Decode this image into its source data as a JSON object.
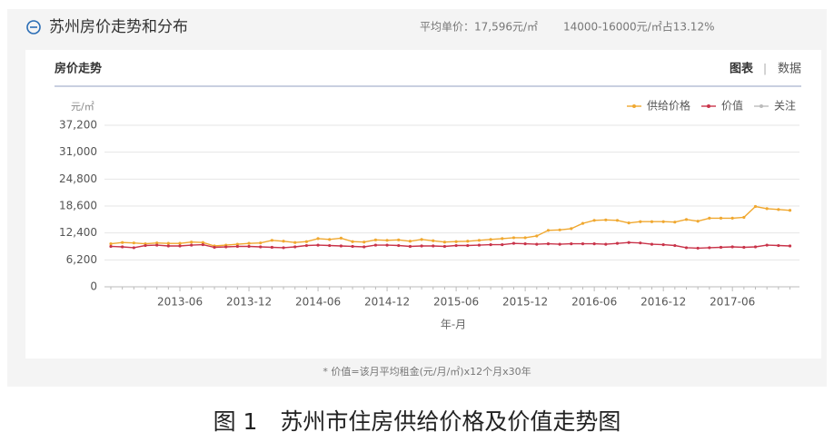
{
  "header": {
    "title": "苏州房价走势和分布",
    "avg_price": "平均单价：17,596元/㎡",
    "share": "14000-16000元/㎡占13.12%"
  },
  "panel": {
    "title": "房价走势",
    "tab_chart": "图表",
    "separator": "|",
    "tab_data": "数据"
  },
  "chart_data": {
    "type": "line",
    "y_unit": "元/㎡",
    "x_label": "年-月",
    "categories": [
      null,
      null,
      null,
      null,
      null,
      null,
      "2013-06",
      null,
      null,
      null,
      null,
      null,
      "2013-12",
      null,
      null,
      null,
      null,
      null,
      "2014-06",
      null,
      null,
      null,
      null,
      null,
      "2014-12",
      null,
      null,
      null,
      null,
      null,
      "2015-06",
      null,
      null,
      null,
      null,
      null,
      "2015-12",
      null,
      null,
      null,
      null,
      null,
      "2016-06",
      null,
      null,
      null,
      null,
      null,
      "2016-12",
      null,
      null,
      null,
      null,
      null,
      "2017-06",
      null,
      null,
      null,
      null,
      null
    ],
    "series": [
      {
        "name": "供给价格",
        "color": "#f0a830",
        "values": [
          9900,
          10200,
          10100,
          9900,
          10100,
          10000,
          10000,
          10300,
          10200,
          9400,
          9600,
          9800,
          10000,
          10100,
          10700,
          10500,
          10200,
          10400,
          11100,
          10900,
          11200,
          10400,
          10300,
          10800,
          10700,
          10800,
          10500,
          10900,
          10600,
          10300,
          10400,
          10500,
          10700,
          10900,
          11100,
          11300,
          11300,
          11700,
          13000,
          13100,
          13400,
          14600,
          15300,
          15400,
          15300,
          14700,
          15000,
          15000,
          15000,
          14900,
          15500,
          15100,
          15800,
          15800,
          15800,
          16000,
          18500,
          18000,
          17800,
          17600
        ]
      },
      {
        "name": "价值",
        "color": "#c9344a",
        "values": [
          9300,
          9200,
          9000,
          9500,
          9600,
          9400,
          9400,
          9600,
          9700,
          9100,
          9200,
          9300,
          9300,
          9200,
          9100,
          9000,
          9200,
          9500,
          9600,
          9500,
          9400,
          9300,
          9200,
          9600,
          9600,
          9500,
          9300,
          9400,
          9400,
          9300,
          9500,
          9500,
          9600,
          9700,
          9700,
          10000,
          9900,
          9800,
          9900,
          9800,
          9900,
          9900,
          9900,
          9800,
          10000,
          10200,
          10100,
          9800,
          9700,
          9500,
          9000,
          8900,
          9000,
          9100,
          9200,
          9100,
          9200,
          9600,
          9500,
          9400
        ]
      },
      {
        "name": "关注",
        "color": "#bbbbbb",
        "values": [
          null,
          null,
          null,
          null,
          null,
          null,
          null,
          null,
          null,
          null,
          null,
          null,
          null,
          null,
          null,
          null,
          null,
          null,
          null,
          null,
          null,
          null,
          null,
          null,
          null,
          null,
          null,
          null,
          null,
          null,
          null,
          null,
          null,
          null,
          null,
          null,
          null,
          null,
          null,
          null,
          null,
          null,
          null,
          null,
          null,
          null,
          null,
          null,
          null,
          null,
          null,
          null,
          null,
          null,
          null,
          null,
          null,
          null,
          null,
          null
        ]
      }
    ],
    "ylim": [
      0,
      37200
    ],
    "yticks": [
      0,
      {
        "value": 6200,
        "label": "6,200"
      },
      {
        "value": 12400,
        "label": "12,400"
      },
      {
        "value": 18600,
        "label": "18,600"
      },
      {
        "value": 24800,
        "label": "24,800"
      },
      {
        "value": 31000,
        "label": "31,000"
      },
      {
        "value": 37200,
        "label": "37,200"
      }
    ],
    "grid": true,
    "legend": "top-right"
  },
  "footnote": "* 价值=该月平均租金(元/月/㎡)x12个月x30年",
  "caption": "图 1　苏州市住房供给价格及价值走势图"
}
